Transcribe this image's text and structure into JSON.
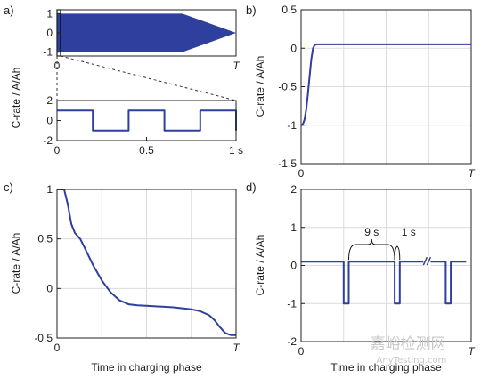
{
  "colors": {
    "series": "#2e3f9e",
    "axis": "#222222",
    "grid": "#dcdcdc"
  },
  "watermark": {
    "cn": "嘉峪检测网",
    "en": "AnyTesting.com"
  },
  "chart_data": [
    {
      "id": "a-top",
      "panel_label": "a)",
      "type": "area",
      "xlabel": "",
      "ylabel": "",
      "xlim": [
        0,
        1
      ],
      "ylim": [
        -1.2,
        1.2
      ],
      "xticks": [
        {
          "v": 0,
          "label": "0"
        },
        {
          "v": 1,
          "label": "T"
        }
      ],
      "yticks": [
        {
          "v": 1,
          "label": "1"
        },
        {
          "v": 0,
          "label": "0"
        },
        {
          "v": -1,
          "label": "-1"
        }
      ],
      "series": [
        {
          "envelope_x": [
            0,
            0.7,
            1
          ],
          "envelope_upper": [
            1,
            1,
            0
          ],
          "envelope_lower": [
            -1,
            -1,
            0
          ]
        }
      ],
      "grid": false
    },
    {
      "id": "a-bottom",
      "panel_label": "",
      "type": "line",
      "xlabel": "",
      "ylabel": "C-rate / A/Ah",
      "xlim": [
        0,
        1
      ],
      "ylim": [
        -2,
        2
      ],
      "xticks": [
        {
          "v": 0,
          "label": "0"
        },
        {
          "v": 0.5,
          "label": "0.5"
        },
        {
          "v": 1,
          "label": "1 s"
        }
      ],
      "yticks": [
        {
          "v": 2,
          "label": "2"
        },
        {
          "v": 0,
          "label": "0"
        },
        {
          "v": -2,
          "label": "-2"
        }
      ],
      "series": [
        {
          "x": [
            0,
            0.2,
            0.2,
            0.4,
            0.4,
            0.6,
            0.6,
            0.8,
            0.8,
            1.0,
            1.0
          ],
          "y": [
            1,
            1,
            -1,
            -1,
            1,
            1,
            -1,
            -1,
            1,
            1,
            -1
          ]
        }
      ],
      "grid": false
    },
    {
      "id": "b",
      "panel_label": "b)",
      "type": "line",
      "xlabel": "",
      "ylabel": "C-rate / A/Ah",
      "xlim": [
        0,
        1
      ],
      "ylim": [
        -1.5,
        0.5
      ],
      "xticks": [
        {
          "v": 0,
          "label": "0"
        },
        {
          "v": 1,
          "label": "T"
        }
      ],
      "yticks": [
        {
          "v": 0.5,
          "label": "0.5"
        },
        {
          "v": 0,
          "label": "0"
        },
        {
          "v": -0.5,
          "label": "-0.5"
        },
        {
          "v": -1,
          "label": "-1"
        },
        {
          "v": -1.5,
          "label": "-1.5"
        }
      ],
      "series": [
        {
          "x": [
            0,
            0.01,
            0.02,
            0.03,
            0.04,
            0.05,
            0.06,
            0.07,
            0.08,
            0.09,
            0.1,
            1.0
          ],
          "y": [
            -1.0,
            -0.99,
            -0.93,
            -0.8,
            -0.6,
            -0.36,
            -0.14,
            0.0,
            0.04,
            0.05,
            0.05,
            0.05
          ]
        }
      ],
      "grid": true
    },
    {
      "id": "c",
      "panel_label": "c)",
      "type": "line",
      "xlabel": "Time in charging phase",
      "ylabel": "C-rate / A/Ah",
      "xlim": [
        0,
        1
      ],
      "ylim": [
        -0.5,
        1
      ],
      "xticks": [
        {
          "v": 0,
          "label": "0"
        },
        {
          "v": 1,
          "label": "T"
        }
      ],
      "yticks": [
        {
          "v": 1,
          "label": "1"
        },
        {
          "v": 0.5,
          "label": "0.5"
        },
        {
          "v": 0,
          "label": "0"
        },
        {
          "v": -0.5,
          "label": "-0.5"
        }
      ],
      "series": [
        {
          "x": [
            0,
            0.04,
            0.06,
            0.08,
            0.1,
            0.13,
            0.16,
            0.2,
            0.25,
            0.3,
            0.35,
            0.4,
            0.45,
            0.5,
            0.55,
            0.6,
            0.65,
            0.7,
            0.75,
            0.8,
            0.85,
            0.88,
            0.91,
            0.94,
            0.97,
            1.0
          ],
          "y": [
            1.0,
            1.0,
            0.85,
            0.65,
            0.56,
            0.5,
            0.39,
            0.24,
            0.08,
            -0.04,
            -0.12,
            -0.16,
            -0.17,
            -0.175,
            -0.18,
            -0.185,
            -0.19,
            -0.2,
            -0.21,
            -0.23,
            -0.27,
            -0.32,
            -0.39,
            -0.45,
            -0.47,
            -0.47
          ]
        }
      ],
      "grid": true
    },
    {
      "id": "d",
      "panel_label": "d)",
      "type": "line",
      "xlabel": "Time in charging phase",
      "ylabel": "C-rate / A/Ah",
      "xlim": [
        0,
        1
      ],
      "ylim": [
        -2,
        2
      ],
      "xticks": [
        {
          "v": 0,
          "label": "0"
        },
        {
          "v": 1,
          "label": "T"
        }
      ],
      "yticks": [
        {
          "v": 2,
          "label": "2"
        },
        {
          "v": 1,
          "label": "1"
        },
        {
          "v": 0,
          "label": "0"
        },
        {
          "v": -1,
          "label": "-1"
        },
        {
          "v": -2,
          "label": "-2"
        }
      ],
      "series": [
        {
          "x": [
            0,
            0.25,
            0.25,
            0.28,
            0.28,
            0.55,
            0.55,
            0.58,
            0.58,
            0.85,
            0.85,
            0.88,
            0.88,
            0.97
          ],
          "y": [
            0.1,
            0.1,
            -1,
            -1,
            0.1,
            0.1,
            -1,
            -1,
            0.1,
            0.1,
            -1,
            -1,
            0.1,
            0.1
          ]
        }
      ],
      "annotations": [
        {
          "label": "9 s"
        },
        {
          "label": "1 s"
        }
      ],
      "grid": true
    }
  ]
}
